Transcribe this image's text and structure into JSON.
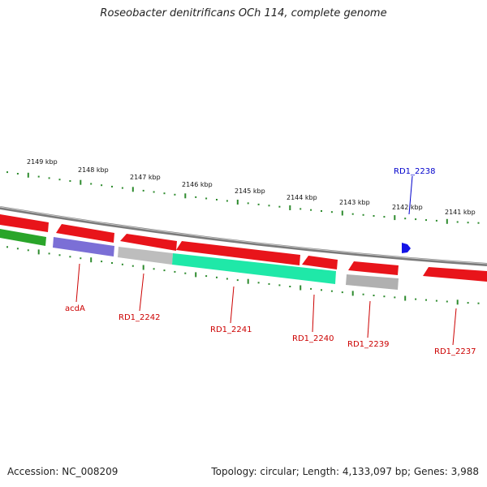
{
  "title": "Roseobacter denitrificans OCh 114, complete genome",
  "footer": {
    "accession": "Accession: NC_008209",
    "summary": "Topology: circular; Length: 4,133,097 bp; Genes: 3,988"
  },
  "scale": {
    "unit": "kbp",
    "ticks": [
      "2149 kbp",
      "2148 kbp",
      "2147 kbp",
      "2146 kbp",
      "2145 kbp",
      "2144 kbp",
      "2143 kbp",
      "2142 kbp",
      "2141 kbp"
    ]
  },
  "colors": {
    "cds": "#e8141a",
    "cds_dark": "#b30000",
    "gene_green": "#2aa52a",
    "gene_purple": "#7b6fd6",
    "gene_grey": "#b8b8b8",
    "gene_teal": "#1fe8a8",
    "backbone": "#8c8c8c",
    "tick": "#2e8b2e",
    "label_red": "#cc0000",
    "label_blue": "#0000cc",
    "marker_blue": "#1414e6"
  },
  "gene_labels": [
    {
      "name": "acdA",
      "color": "red"
    },
    {
      "name": "RD1_2242",
      "color": "red"
    },
    {
      "name": "RD1_2241",
      "color": "red"
    },
    {
      "name": "RD1_2240",
      "color": "red"
    },
    {
      "name": "RD1_2239",
      "color": "red"
    },
    {
      "name": "RD1_2238",
      "color": "blue"
    },
    {
      "name": "RD1_2237",
      "color": "red"
    }
  ]
}
